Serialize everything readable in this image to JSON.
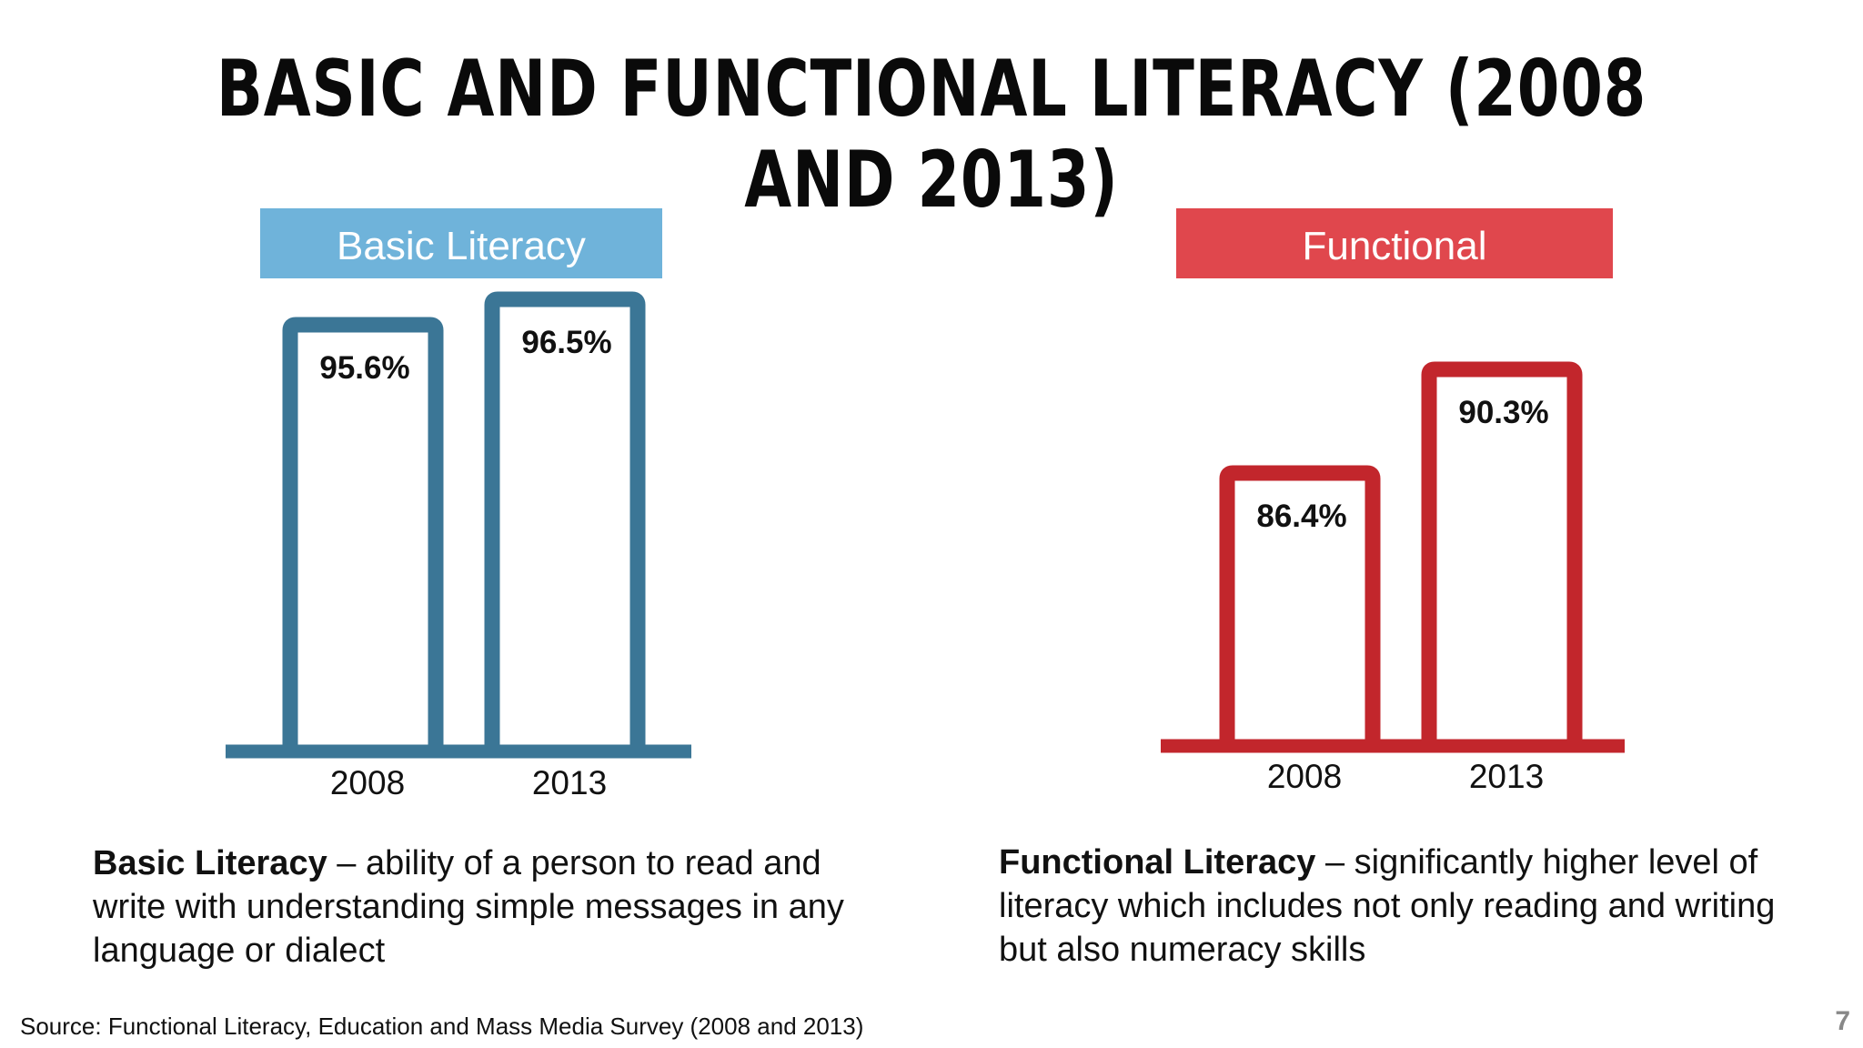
{
  "slide": {
    "title": "Basic and Functional Literacy (2008 and 2013)",
    "source": "Source: Functional Literacy, Education and Mass Media Survey (2008 and 2013)",
    "page_number": "7"
  },
  "colors": {
    "basic_header": "#6fb3da",
    "basic_bars": "#3b7696",
    "functional_header": "#e0474d",
    "functional_bars": "#c2262c"
  },
  "definitions": {
    "basic": {
      "term": "Basic Literacy",
      "text": " – ability of a person to read and write with understanding simple messages in any language or dialect"
    },
    "functional": {
      "term": "Functional Literacy",
      "text": " – significantly higher level of literacy which includes not only reading and writing but also numeracy skills"
    }
  },
  "chart_data": [
    {
      "type": "bar",
      "title": "Basic Literacy",
      "categories": [
        "2008",
        "2013"
      ],
      "values": [
        95.6,
        96.5
      ],
      "value_labels": [
        "95.6%",
        "96.5%"
      ]
    },
    {
      "type": "bar",
      "title": "Functional",
      "categories": [
        "2008",
        "2013"
      ],
      "values": [
        86.4,
        90.3
      ],
      "value_labels": [
        "86.4%",
        "90.3%"
      ]
    }
  ]
}
